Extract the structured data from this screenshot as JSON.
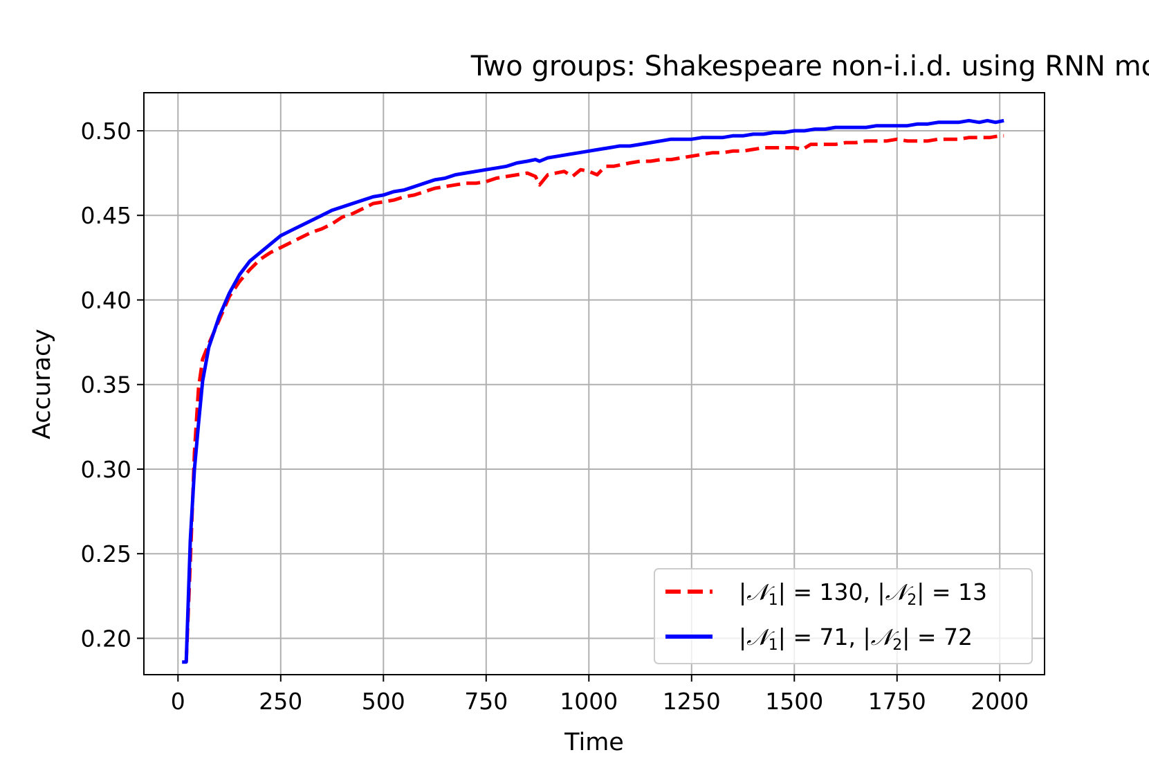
{
  "chart_data": {
    "type": "line",
    "title": "Two groups: Shakespeare non-i.i.d. using RNN model",
    "xlabel": "Time",
    "ylabel": "Accuracy",
    "xlim": [
      -83,
      2109
    ],
    "ylim": [
      0.1785,
      0.5225
    ],
    "xticks": [
      0,
      250,
      500,
      750,
      1000,
      1250,
      1500,
      1750,
      2000
    ],
    "xtick_labels": [
      "0",
      "250",
      "500",
      "750",
      "1000",
      "1250",
      "1500",
      "1750",
      "2000"
    ],
    "yticks": [
      0.2,
      0.25,
      0.3,
      0.35,
      0.4,
      0.45,
      0.5
    ],
    "ytick_labels": [
      "0.20",
      "0.25",
      "0.30",
      "0.35",
      "0.40",
      "0.45",
      "0.50"
    ],
    "grid": true,
    "legend_position": "lower right",
    "series": [
      {
        "name": "|𝒩₁| = 130, |𝒩₂| = 13",
        "legend_parts": {
          "n1_val": "130",
          "n2_val": "13"
        },
        "color": "#ff0000",
        "style": "dashed",
        "x": [
          20,
          30,
          40,
          50,
          60,
          75,
          100,
          125,
          150,
          175,
          200,
          225,
          250,
          275,
          300,
          325,
          350,
          375,
          400,
          425,
          450,
          475,
          500,
          525,
          550,
          575,
          600,
          625,
          650,
          675,
          700,
          725,
          750,
          775,
          800,
          825,
          850,
          870,
          880,
          900,
          920,
          940,
          960,
          980,
          1000,
          1020,
          1040,
          1060,
          1080,
          1100,
          1125,
          1150,
          1175,
          1200,
          1225,
          1250,
          1275,
          1300,
          1325,
          1350,
          1375,
          1400,
          1425,
          1450,
          1475,
          1500,
          1520,
          1540,
          1560,
          1580,
          1600,
          1625,
          1650,
          1675,
          1700,
          1725,
          1750,
          1775,
          1800,
          1825,
          1850,
          1875,
          1900,
          1925,
          1950,
          1975,
          2000,
          2010
        ],
        "y": [
          0.186,
          0.245,
          0.31,
          0.348,
          0.365,
          0.374,
          0.388,
          0.402,
          0.411,
          0.418,
          0.424,
          0.428,
          0.431,
          0.434,
          0.437,
          0.44,
          0.442,
          0.445,
          0.449,
          0.451,
          0.454,
          0.457,
          0.458,
          0.459,
          0.461,
          0.462,
          0.464,
          0.466,
          0.467,
          0.468,
          0.469,
          0.469,
          0.47,
          0.472,
          0.473,
          0.474,
          0.475,
          0.473,
          0.468,
          0.474,
          0.475,
          0.476,
          0.473,
          0.477,
          0.476,
          0.474,
          0.479,
          0.479,
          0.48,
          0.481,
          0.482,
          0.482,
          0.483,
          0.483,
          0.484,
          0.485,
          0.486,
          0.487,
          0.487,
          0.488,
          0.488,
          0.489,
          0.49,
          0.49,
          0.49,
          0.49,
          0.489,
          0.492,
          0.492,
          0.492,
          0.492,
          0.493,
          0.493,
          0.494,
          0.494,
          0.494,
          0.495,
          0.494,
          0.494,
          0.494,
          0.495,
          0.495,
          0.495,
          0.496,
          0.496,
          0.496,
          0.497,
          0.497
        ]
      },
      {
        "name": "|𝒩₁| = 71, |𝒩₂| = 72",
        "legend_parts": {
          "n1_val": "71",
          "n2_val": "72"
        },
        "color": "#0000ff",
        "style": "solid",
        "x": [
          10,
          20,
          30,
          40,
          50,
          60,
          75,
          100,
          125,
          150,
          175,
          200,
          225,
          250,
          275,
          300,
          325,
          350,
          375,
          400,
          425,
          450,
          475,
          500,
          525,
          550,
          575,
          600,
          625,
          650,
          675,
          700,
          725,
          750,
          775,
          800,
          825,
          850,
          870,
          880,
          900,
          925,
          950,
          975,
          1000,
          1025,
          1050,
          1075,
          1100,
          1125,
          1150,
          1175,
          1200,
          1225,
          1250,
          1275,
          1300,
          1325,
          1350,
          1375,
          1400,
          1425,
          1450,
          1475,
          1500,
          1525,
          1550,
          1575,
          1600,
          1625,
          1650,
          1675,
          1700,
          1725,
          1750,
          1775,
          1800,
          1825,
          1850,
          1875,
          1900,
          1925,
          1950,
          1970,
          1990,
          2010
        ],
        "y": [
          0.186,
          0.186,
          0.258,
          0.3,
          0.327,
          0.352,
          0.372,
          0.39,
          0.404,
          0.415,
          0.423,
          0.428,
          0.433,
          0.438,
          0.441,
          0.444,
          0.447,
          0.45,
          0.453,
          0.455,
          0.457,
          0.459,
          0.461,
          0.462,
          0.464,
          0.465,
          0.467,
          0.469,
          0.471,
          0.472,
          0.474,
          0.475,
          0.476,
          0.477,
          0.478,
          0.479,
          0.481,
          0.482,
          0.483,
          0.482,
          0.484,
          0.485,
          0.486,
          0.487,
          0.488,
          0.489,
          0.49,
          0.491,
          0.491,
          0.492,
          0.493,
          0.494,
          0.495,
          0.495,
          0.495,
          0.496,
          0.496,
          0.496,
          0.497,
          0.497,
          0.498,
          0.498,
          0.499,
          0.499,
          0.5,
          0.5,
          0.501,
          0.501,
          0.502,
          0.502,
          0.502,
          0.502,
          0.503,
          0.503,
          0.503,
          0.503,
          0.504,
          0.504,
          0.505,
          0.505,
          0.505,
          0.506,
          0.505,
          0.506,
          0.505,
          0.506
        ]
      }
    ]
  }
}
